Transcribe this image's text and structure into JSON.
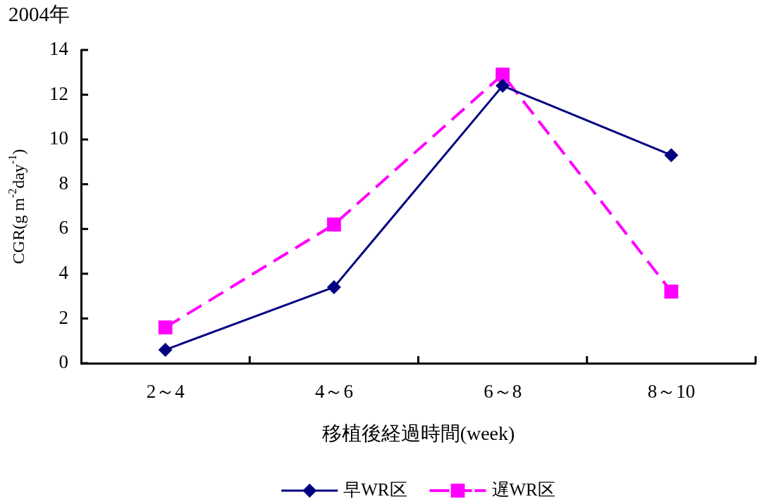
{
  "chart_data": {
    "type": "line",
    "title": "2004年",
    "xlabel": "移植後経過時間(week)",
    "ylabel": "CGR(g m$^{-2}$day$^{-1}$)",
    "categories": [
      "2～4",
      "4～6",
      "6～8",
      "8～10"
    ],
    "series": [
      {
        "name": "早WR区",
        "color": "#000080",
        "values": [
          0.6,
          3.4,
          12.4,
          9.3
        ],
        "marker": "diamond",
        "line_style": "solid"
      },
      {
        "name": "遅WR区",
        "color": "#ff00ff",
        "values": [
          1.6,
          6.2,
          12.9,
          3.2
        ],
        "marker": "square",
        "line_style": "dashed"
      }
    ],
    "ylim": [
      0,
      14
    ],
    "yticks": [
      0,
      2,
      4,
      6,
      8,
      10,
      12,
      14
    ],
    "legend": "bottom"
  }
}
